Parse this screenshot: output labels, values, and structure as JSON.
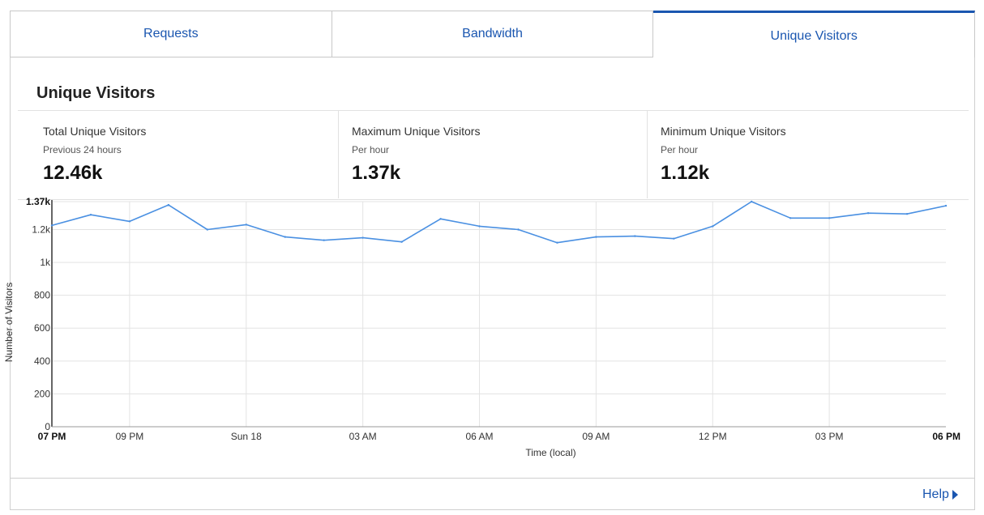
{
  "tabs": [
    {
      "label": "Requests",
      "active": false
    },
    {
      "label": "Bandwidth",
      "active": false
    },
    {
      "label": "Unique Visitors",
      "active": true
    }
  ],
  "section_title": "Unique Visitors",
  "stats": [
    {
      "title": "Total Unique Visitors",
      "subtitle": "Previous 24 hours",
      "value": "12.46k"
    },
    {
      "title": "Maximum Unique Visitors",
      "subtitle": "Per hour",
      "value": "1.37k"
    },
    {
      "title": "Minimum Unique Visitors",
      "subtitle": "Per hour",
      "value": "1.12k"
    }
  ],
  "help_label": "Help",
  "colors": {
    "accent": "#1a56b0",
    "line": "#4a90e2",
    "grid": "#e3e3e3"
  },
  "chart_data": {
    "type": "line",
    "xlabel": "Time (local)",
    "ylabel": "Number of Visitors",
    "ylim": [
      0,
      1370
    ],
    "y_ticks": [
      {
        "value": 0,
        "label": "0"
      },
      {
        "value": 200,
        "label": "200"
      },
      {
        "value": 400,
        "label": "400"
      },
      {
        "value": 600,
        "label": "600"
      },
      {
        "value": 800,
        "label": "800"
      },
      {
        "value": 1000,
        "label": "1k"
      },
      {
        "value": 1200,
        "label": "1.2k"
      },
      {
        "value": 1370,
        "label": "1.37k",
        "bold": true
      }
    ],
    "x_ticks": [
      {
        "index": 0,
        "label": "07 PM",
        "bold": true
      },
      {
        "index": 2,
        "label": "09 PM"
      },
      {
        "index": 5,
        "label": "Sun 18"
      },
      {
        "index": 8,
        "label": "03 AM"
      },
      {
        "index": 11,
        "label": "06 AM"
      },
      {
        "index": 14,
        "label": "09 AM"
      },
      {
        "index": 17,
        "label": "12 PM"
      },
      {
        "index": 20,
        "label": "03 PM"
      },
      {
        "index": 23,
        "label": "06 PM",
        "bold": true
      }
    ],
    "grid": true,
    "series": [
      {
        "values": [
          1225,
          1290,
          1250,
          1350,
          1200,
          1230,
          1155,
          1135,
          1150,
          1125,
          1265,
          1220,
          1200,
          1120,
          1155,
          1160,
          1145,
          1220,
          1370,
          1270,
          1270,
          1300,
          1295,
          1345
        ]
      }
    ]
  }
}
